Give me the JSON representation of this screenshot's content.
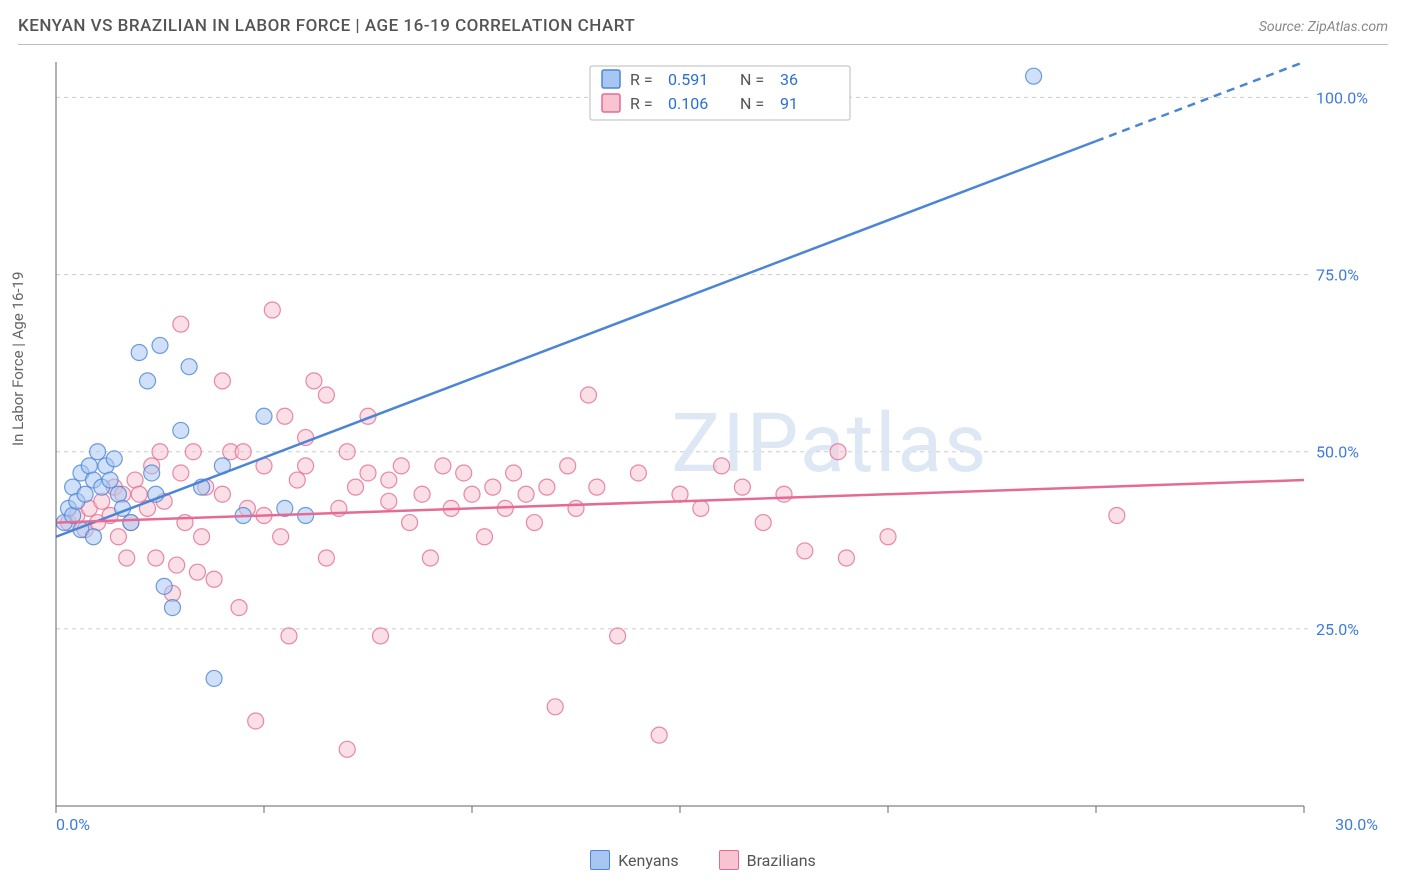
{
  "title": "KENYAN VS BRAZILIAN IN LABOR FORCE | AGE 16-19 CORRELATION CHART",
  "source": "Source: ZipAtlas.com",
  "watermark": "ZIPatlas",
  "y_axis_label": "In Labor Force | Age 16-19",
  "chart": {
    "type": "scatter",
    "xlim": [
      0,
      30
    ],
    "ylim": [
      0,
      105
    ],
    "x_ticks": [
      0,
      5,
      10,
      15,
      20,
      25,
      30
    ],
    "x_tick_labels": {
      "0": "0.0%",
      "30": "30.0%"
    },
    "y_ticks": [
      25,
      50,
      75,
      100
    ],
    "y_tick_labels": {
      "25": "25.0%",
      "50": "50.0%",
      "75": "75.0%",
      "100": "100.0%"
    },
    "grid_color": "#cccccc",
    "axis_color": "#666666",
    "background": "#ffffff",
    "marker_radius": 8,
    "marker_opacity": 0.55,
    "series": [
      {
        "name": "Kenyans",
        "color_fill": "#a7c7f2",
        "color_stroke": "#4b86d6",
        "r_value": "0.591",
        "n_value": "36",
        "trend": {
          "x1": 0,
          "y1": 38,
          "x2": 30,
          "y2": 105,
          "dashed_from_x": 25
        },
        "points": [
          [
            0.2,
            40
          ],
          [
            0.3,
            42
          ],
          [
            0.4,
            45
          ],
          [
            0.4,
            41
          ],
          [
            0.5,
            43
          ],
          [
            0.6,
            47
          ],
          [
            0.6,
            39
          ],
          [
            0.7,
            44
          ],
          [
            0.8,
            48
          ],
          [
            0.9,
            46
          ],
          [
            1.0,
            50
          ],
          [
            1.1,
            45
          ],
          [
            1.2,
            48
          ],
          [
            1.3,
            46
          ],
          [
            1.4,
            49
          ],
          [
            1.5,
            44
          ],
          [
            1.6,
            42
          ],
          [
            1.8,
            40
          ],
          [
            2.0,
            64
          ],
          [
            2.2,
            60
          ],
          [
            2.3,
            47
          ],
          [
            2.5,
            65
          ],
          [
            2.6,
            31
          ],
          [
            2.8,
            28
          ],
          [
            3.0,
            53
          ],
          [
            3.2,
            62
          ],
          [
            3.5,
            45
          ],
          [
            3.8,
            18
          ],
          [
            4.0,
            48
          ],
          [
            4.5,
            41
          ],
          [
            5.0,
            55
          ],
          [
            5.5,
            42
          ],
          [
            6.0,
            41
          ],
          [
            2.4,
            44
          ],
          [
            0.9,
            38
          ],
          [
            23.5,
            103
          ]
        ]
      },
      {
        "name": "Brazilians",
        "color_fill": "#f8c4d2",
        "color_stroke": "#e66b94",
        "r_value": "0.106",
        "n_value": "91",
        "trend": {
          "x1": 0,
          "y1": 40,
          "x2": 30,
          "y2": 46,
          "dashed_from_x": null
        },
        "points": [
          [
            0.3,
            40
          ],
          [
            0.5,
            41
          ],
          [
            0.7,
            39
          ],
          [
            0.8,
            42
          ],
          [
            1.0,
            40
          ],
          [
            1.1,
            43
          ],
          [
            1.3,
            41
          ],
          [
            1.4,
            45
          ],
          [
            1.5,
            38
          ],
          [
            1.6,
            44
          ],
          [
            1.8,
            40
          ],
          [
            1.9,
            46
          ],
          [
            2.0,
            44
          ],
          [
            2.2,
            42
          ],
          [
            2.3,
            48
          ],
          [
            2.4,
            35
          ],
          [
            2.5,
            50
          ],
          [
            2.6,
            43
          ],
          [
            2.8,
            30
          ],
          [
            3.0,
            47
          ],
          [
            3.1,
            40
          ],
          [
            3.3,
            50
          ],
          [
            3.5,
            38
          ],
          [
            3.6,
            45
          ],
          [
            3.8,
            32
          ],
          [
            4.0,
            44
          ],
          [
            4.2,
            50
          ],
          [
            4.4,
            28
          ],
          [
            4.6,
            42
          ],
          [
            4.8,
            12
          ],
          [
            5.0,
            41
          ],
          [
            5.2,
            70
          ],
          [
            5.4,
            38
          ],
          [
            5.6,
            24
          ],
          [
            5.8,
            46
          ],
          [
            6.0,
            48
          ],
          [
            6.2,
            60
          ],
          [
            6.5,
            35
          ],
          [
            6.8,
            42
          ],
          [
            7.0,
            8
          ],
          [
            7.2,
            45
          ],
          [
            7.5,
            47
          ],
          [
            7.8,
            24
          ],
          [
            8.0,
            43
          ],
          [
            8.3,
            48
          ],
          [
            8.5,
            40
          ],
          [
            8.8,
            44
          ],
          [
            9.0,
            35
          ],
          [
            9.3,
            48
          ],
          [
            9.5,
            42
          ],
          [
            9.8,
            47
          ],
          [
            10.0,
            44
          ],
          [
            10.3,
            38
          ],
          [
            10.5,
            45
          ],
          [
            10.8,
            42
          ],
          [
            11.0,
            47
          ],
          [
            11.3,
            44
          ],
          [
            11.5,
            40
          ],
          [
            11.8,
            45
          ],
          [
            12.0,
            14
          ],
          [
            12.3,
            48
          ],
          [
            12.5,
            42
          ],
          [
            12.8,
            58
          ],
          [
            13.0,
            45
          ],
          [
            13.5,
            24
          ],
          [
            14.0,
            47
          ],
          [
            14.5,
            10
          ],
          [
            15.0,
            44
          ],
          [
            15.5,
            42
          ],
          [
            16.0,
            48
          ],
          [
            16.5,
            45
          ],
          [
            17.0,
            40
          ],
          [
            17.5,
            44
          ],
          [
            18.0,
            36
          ],
          [
            18.8,
            50
          ],
          [
            3.0,
            68
          ],
          [
            4.0,
            60
          ],
          [
            5.5,
            55
          ],
          [
            6.5,
            58
          ],
          [
            7.5,
            55
          ],
          [
            4.5,
            50
          ],
          [
            5.0,
            48
          ],
          [
            6.0,
            52
          ],
          [
            7.0,
            50
          ],
          [
            8.0,
            46
          ],
          [
            25.5,
            41
          ],
          [
            20.0,
            38
          ],
          [
            19.0,
            35
          ],
          [
            1.7,
            35
          ],
          [
            2.9,
            34
          ],
          [
            3.4,
            33
          ]
        ]
      }
    ]
  },
  "legend_box": {
    "r_label": "R =",
    "n_label": "N ="
  },
  "bottom_legend": [
    "Kenyans",
    "Brazilians"
  ]
}
